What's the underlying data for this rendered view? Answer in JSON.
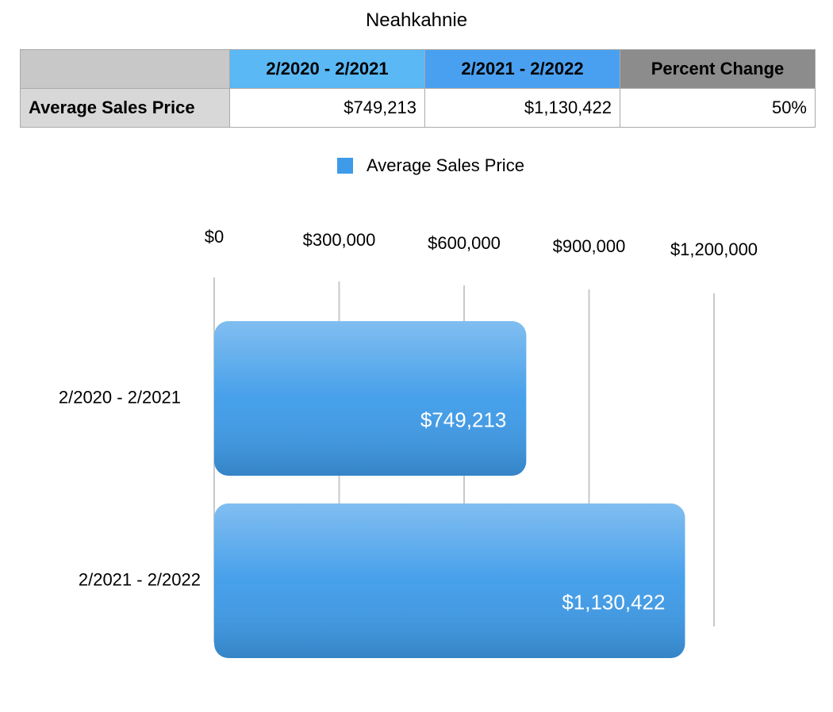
{
  "title": "Neahkahnie",
  "table": {
    "columns": [
      "2/2020 - 2/2021",
      "2/2021 - 2/2022",
      "Percent Change"
    ],
    "rows": [
      [
        "Average Sales Price",
        "$749,213",
        "$1,130,422",
        "50%"
      ]
    ]
  },
  "chart_data": {
    "type": "bar",
    "orientation": "horizontal",
    "categories": [
      "2/2020 - 2/2021",
      "2/2021 - 2/2022"
    ],
    "series": [
      {
        "name": "Average Sales Price",
        "color": "#3d9be9",
        "values": [
          749213,
          1130422
        ],
        "value_labels": [
          "$749,213",
          "$1,130,422"
        ]
      }
    ],
    "xlim": [
      0,
      1200000
    ],
    "xticks": [
      {
        "value": 0,
        "label": "$0"
      },
      {
        "value": 300000,
        "label": "$300,000"
      },
      {
        "value": 600000,
        "label": "$600,000"
      },
      {
        "value": 900000,
        "label": "$900,000"
      },
      {
        "value": 1200000,
        "label": "$1,200,000"
      }
    ],
    "grid": true,
    "legend": "top"
  }
}
